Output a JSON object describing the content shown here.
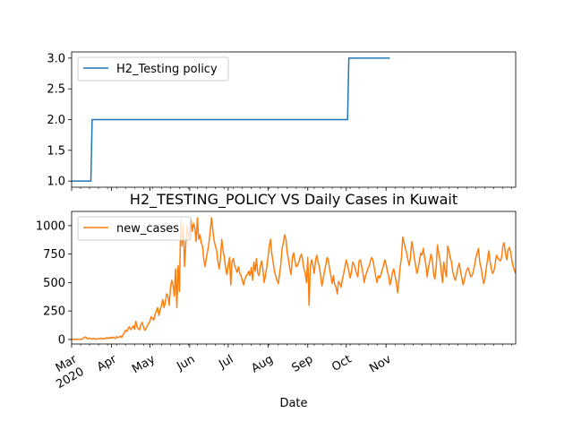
{
  "chart_data": [
    {
      "type": "line",
      "title": "",
      "xlabel": "",
      "ylabel": "",
      "ylim": [
        0.9,
        3.1
      ],
      "yticks": [
        "1.0",
        "1.5",
        "2.0",
        "2.5",
        "3.0"
      ],
      "legend_position": "top-left",
      "color": "#1f77b4",
      "series": [
        {
          "name": "H2_Testing policy",
          "points": [
            {
              "x": "2020-03-01",
              "y": 1
            },
            {
              "x": "2020-03-16",
              "y": 1
            },
            {
              "x": "2020-03-17",
              "y": 2
            },
            {
              "x": "2020-10-02",
              "y": 2
            },
            {
              "x": "2020-10-03",
              "y": 3
            },
            {
              "x": "2020-11-04",
              "y": 3
            }
          ]
        }
      ]
    },
    {
      "type": "line",
      "title": "H2_TESTING_POLICY VS Daily Cases in Kuwait",
      "xlabel": "Date",
      "ylabel": "",
      "ylim": [
        -40,
        1125
      ],
      "yticks": [
        "0",
        "250",
        "500",
        "750",
        "1000"
      ],
      "xticks": [
        {
          "date": "2020-03-01",
          "label": "Mar",
          "sublabel": "2020"
        },
        {
          "date": "2020-04-01",
          "label": "Apr"
        },
        {
          "date": "2020-05-01",
          "label": "May"
        },
        {
          "date": "2020-06-01",
          "label": "Jun"
        },
        {
          "date": "2020-07-01",
          "label": "Jul"
        },
        {
          "date": "2020-08-01",
          "label": "Aug"
        },
        {
          "date": "2020-09-01",
          "label": "Sep"
        },
        {
          "date": "2020-10-01",
          "label": "Oct"
        },
        {
          "date": "2020-11-01",
          "label": "Nov"
        }
      ],
      "legend_position": "top-left",
      "color": "#ff7f0e",
      "series": [
        {
          "name": "new_cases",
          "start_date": "2020-03-01",
          "values": [
            0,
            2,
            1,
            0,
            0,
            3,
            1,
            0,
            2,
            10,
            18,
            22,
            8,
            5,
            12,
            6,
            3,
            8,
            5,
            2,
            4,
            10,
            6,
            12,
            3,
            8,
            6,
            15,
            12,
            9,
            18,
            10,
            22,
            14,
            8,
            25,
            16,
            20,
            30,
            18,
            40,
            55,
            80,
            70,
            95,
            110,
            85,
            100,
            120,
            90,
            160,
            110,
            95,
            85,
            130,
            150,
            110,
            80,
            95,
            120,
            140,
            160,
            200,
            185,
            170,
            220,
            250,
            280,
            210,
            260,
            300,
            350,
            280,
            330,
            400,
            380,
            300,
            450,
            520,
            480,
            380,
            620,
            280,
            650,
            420,
            1050,
            820,
            1010,
            640,
            850,
            1000,
            880,
            960,
            1050,
            950,
            1020,
            980,
            860,
            1070,
            880,
            920,
            850,
            820,
            700,
            640,
            720,
            780,
            850,
            950,
            1070,
            960,
            870,
            820,
            780,
            680,
            620,
            720,
            880,
            780,
            720,
            630,
            570,
            650,
            720,
            480,
            690,
            710,
            650,
            620,
            590,
            640,
            580,
            560,
            520,
            480,
            530,
            560,
            570,
            600,
            560,
            630,
            520,
            680,
            600,
            710,
            580,
            560,
            640,
            690,
            620,
            500,
            560,
            630,
            720,
            820,
            880,
            750,
            680,
            600,
            560,
            520,
            490,
            570,
            660,
            800,
            850,
            920,
            880,
            760,
            700,
            620,
            570,
            720,
            760,
            690,
            640,
            650,
            680,
            720,
            750,
            700,
            620,
            580,
            500,
            720,
            300,
            640,
            700,
            650,
            580,
            690,
            740,
            680,
            640,
            560,
            470,
            530,
            600,
            650,
            720,
            700,
            620,
            560,
            490,
            560,
            480,
            460,
            400,
            510,
            490,
            460,
            530,
            580,
            640,
            700,
            650,
            600,
            540,
            590,
            680,
            660,
            620,
            580,
            550,
            690,
            700,
            640,
            580,
            500,
            560,
            590,
            630,
            650,
            700,
            720,
            680,
            620,
            550,
            500,
            560,
            540,
            570,
            610,
            650,
            700,
            660,
            600,
            560,
            480,
            520,
            590,
            620,
            560,
            500,
            410,
            520,
            640,
            720,
            900,
            850,
            800,
            760,
            700,
            650,
            720,
            860,
            800,
            720,
            650,
            580,
            620,
            690,
            760,
            740,
            800,
            720,
            660,
            550,
            630,
            690,
            750,
            700,
            580,
            530,
            620,
            830,
            760,
            700,
            600,
            500,
            680,
            600,
            550,
            820,
            780,
            720,
            680,
            590,
            550,
            520,
            570,
            630,
            670,
            600,
            540,
            480,
            520,
            580,
            610,
            630,
            590,
            550,
            560,
            600,
            650,
            720,
            760,
            800,
            680,
            630,
            560,
            490,
            530,
            620,
            700,
            780,
            690,
            620,
            580,
            600,
            660,
            740,
            720,
            700,
            690,
            720,
            820,
            850,
            760,
            700,
            780,
            810,
            770,
            700,
            640,
            610,
            580
          ]
        }
      ]
    }
  ]
}
